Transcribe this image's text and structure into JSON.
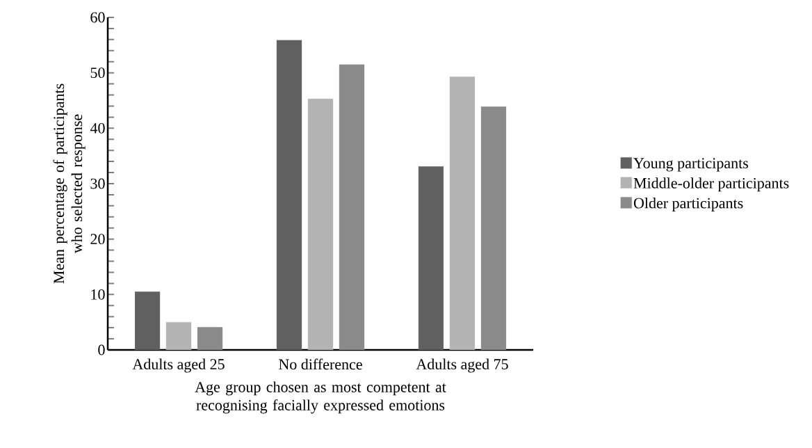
{
  "chart_data": {
    "type": "bar",
    "xlabel": "Age group chosen as most competent at recognising facially expressed emotions",
    "ylabel": "Mean percentage of participants who selected response",
    "categories": [
      "Adults aged 25",
      "No difference",
      "Adults aged 75"
    ],
    "series": [
      {
        "name": "Young participants",
        "color": "#606060",
        "values": [
          10.5,
          55.9,
          33.1
        ]
      },
      {
        "name": "Middle-older participants",
        "color": "#b3b3b3",
        "values": [
          5.0,
          45.3,
          49.3
        ]
      },
      {
        "name": "Older participants",
        "color": "#8a8a8a",
        "values": [
          4.1,
          51.5,
          43.9
        ]
      }
    ],
    "ylim": [
      0,
      60
    ],
    "yticks": [
      0,
      10,
      20,
      30,
      40,
      50,
      60
    ],
    "legend": "right"
  }
}
